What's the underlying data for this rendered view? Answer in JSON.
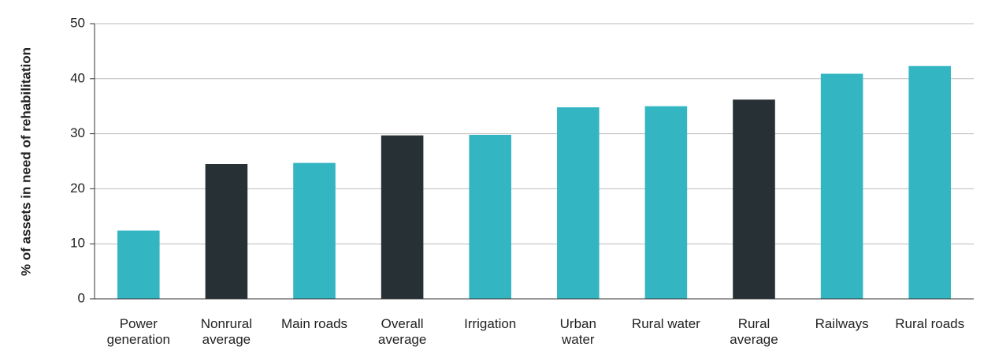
{
  "chart_data": {
    "type": "bar",
    "y_label": "% of assets in need of rehabilitation",
    "categories": [
      "Power generation",
      "Nonrural average",
      "Main roads",
      "Overall average",
      "Irrigation",
      "Urban water",
      "Rural water",
      "Rural average",
      "Railways",
      "Rural roads"
    ],
    "values": [
      12.4,
      24.5,
      24.7,
      29.7,
      29.8,
      34.8,
      35,
      36.2,
      40.9,
      42.3
    ],
    "colors": [
      "#34b6c2",
      "#273034",
      "#34b6c2",
      "#273034",
      "#34b6c2",
      "#34b6c2",
      "#34b6c2",
      "#273034",
      "#34b6c2",
      "#34b6c2"
    ],
    "ylim": [
      0,
      50
    ],
    "yticks": [
      0,
      10,
      20,
      30,
      40,
      50
    ],
    "grid": true
  }
}
